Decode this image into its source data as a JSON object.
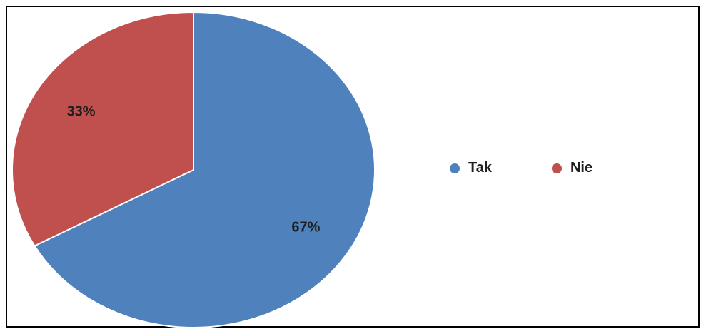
{
  "chart_data": {
    "type": "pie",
    "slices": [
      {
        "label": "Tak",
        "value": 67,
        "value_label": "67%",
        "color": "#4F81BD"
      },
      {
        "label": "Nie",
        "value": 33,
        "value_label": "33%",
        "color": "#C0504D"
      }
    ],
    "start_angle_deg": 0,
    "direction": "clockwise",
    "legend": "right"
  }
}
